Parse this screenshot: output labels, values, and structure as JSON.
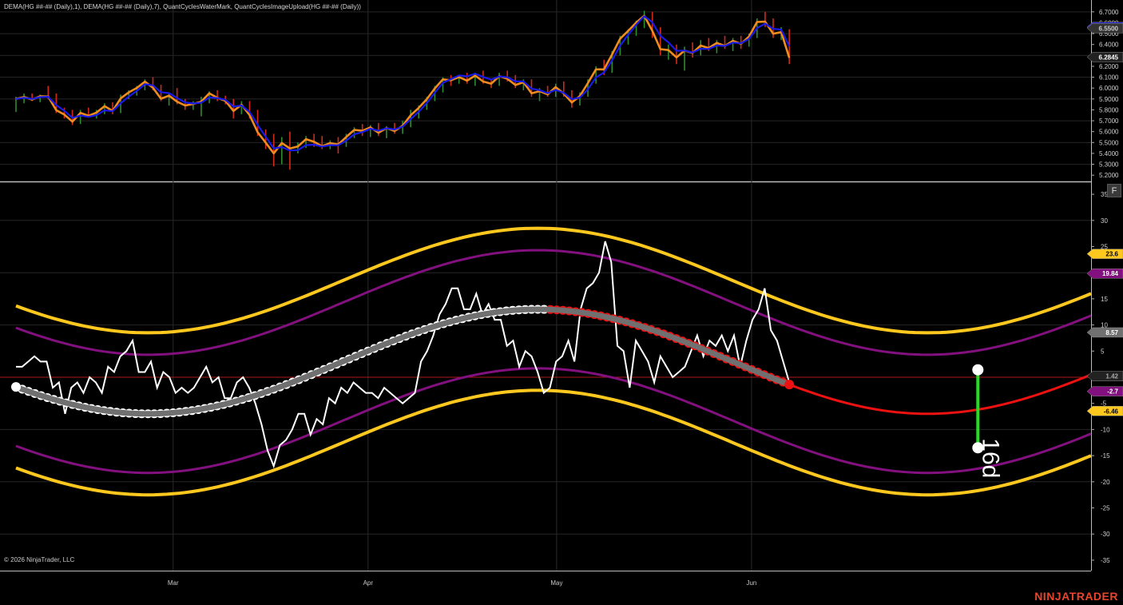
{
  "indicator_label": "DEMA(HG ##-## (Daily),1), DEMA(HG ##-## (Daily),7), QuantCyclesWaterMark, QuantCyclesImageUpload(HG ##-## (Daily))",
  "copyright": "© 2026 NinjaTrader, LLC",
  "brand": "NINJATRADER",
  "f_button": "F",
  "colors": {
    "background": "#000000",
    "bull_bar": "#2e8b2e",
    "bear_bar": "#d22a1a",
    "dema1": "#f08c1e",
    "dema7": "#1a1ae6",
    "outer_band": "#ffc81e",
    "inner_band": "#82107e",
    "cycle_past": "#707070",
    "cycle_future": "#ee1111",
    "oscillator": "#ffffff",
    "zero_line": "#b01a1a",
    "projection": "#22dd22"
  },
  "chart_data": [
    {
      "type": "line",
      "panel": "price",
      "ylim": [
        5.15,
        6.75
      ],
      "y_ticks": [
        "6.7000",
        "6.6000",
        "6.5000",
        "6.4000",
        "6.3000",
        "6.2000",
        "6.1000",
        "6.0000",
        "5.9000",
        "5.8000",
        "5.7000",
        "5.6000",
        "5.5000",
        "5.4000",
        "5.3000",
        "5.2000"
      ],
      "x_labels": [
        {
          "label": "Mar",
          "day": 25
        },
        {
          "label": "Apr",
          "day": 56
        },
        {
          "label": "May",
          "day": 86
        },
        {
          "label": "Jun",
          "day": 117
        }
      ],
      "x_range": [
        0,
        171
      ],
      "bars": [
        [
          5.86,
          5.92,
          5.78,
          5.9
        ],
        [
          5.9,
          5.95,
          5.86,
          5.92
        ],
        [
          5.92,
          5.95,
          5.88,
          5.89
        ],
        [
          5.89,
          5.94,
          5.87,
          5.93
        ],
        [
          5.93,
          6.02,
          5.9,
          5.92
        ],
        [
          5.92,
          5.95,
          5.77,
          5.78
        ],
        [
          5.78,
          5.82,
          5.72,
          5.76
        ],
        [
          5.76,
          5.8,
          5.66,
          5.69
        ],
        [
          5.69,
          5.8,
          5.67,
          5.79
        ],
        [
          5.79,
          5.82,
          5.73,
          5.74
        ],
        [
          5.74,
          5.8,
          5.72,
          5.78
        ],
        [
          5.78,
          5.86,
          5.76,
          5.84
        ],
        [
          5.84,
          5.87,
          5.76,
          5.78
        ],
        [
          5.78,
          5.94,
          5.77,
          5.92
        ],
        [
          5.92,
          5.98,
          5.9,
          5.96
        ],
        [
          5.96,
          6.02,
          5.93,
          6.0
        ],
        [
          6.0,
          6.08,
          5.98,
          6.06
        ],
        [
          6.06,
          6.1,
          5.98,
          5.99
        ],
        [
          5.99,
          6.03,
          5.88,
          5.89
        ],
        [
          5.89,
          5.96,
          5.84,
          5.94
        ],
        [
          5.94,
          6.0,
          5.85,
          5.87
        ],
        [
          5.87,
          5.9,
          5.8,
          5.84
        ],
        [
          5.84,
          5.88,
          5.8,
          5.86
        ],
        [
          5.86,
          5.92,
          5.74,
          5.88
        ],
        [
          5.88,
          5.97,
          5.86,
          5.96
        ],
        [
          5.96,
          5.98,
          5.88,
          5.9
        ],
        [
          5.9,
          5.93,
          5.85,
          5.88
        ],
        [
          5.88,
          5.9,
          5.72,
          5.78
        ],
        [
          5.78,
          5.88,
          5.76,
          5.86
        ],
        [
          5.86,
          5.88,
          5.72,
          5.74
        ],
        [
          5.74,
          5.8,
          5.56,
          5.58
        ],
        [
          5.58,
          5.62,
          5.44,
          5.5
        ],
        [
          5.5,
          5.58,
          5.28,
          5.4
        ],
        [
          5.4,
          5.55,
          5.3,
          5.52
        ],
        [
          5.52,
          5.6,
          5.25,
          5.44
        ],
        [
          5.44,
          5.5,
          5.4,
          5.47
        ],
        [
          5.47,
          5.56,
          5.45,
          5.54
        ],
        [
          5.54,
          5.58,
          5.46,
          5.5
        ],
        [
          5.5,
          5.56,
          5.44,
          5.46
        ],
        [
          5.46,
          5.52,
          5.44,
          5.5
        ],
        [
          5.5,
          5.55,
          5.4,
          5.48
        ],
        [
          5.48,
          5.58,
          5.46,
          5.56
        ],
        [
          5.56,
          5.64,
          5.54,
          5.62
        ],
        [
          5.62,
          5.67,
          5.56,
          5.6
        ],
        [
          5.6,
          5.66,
          5.55,
          5.64
        ],
        [
          5.64,
          5.68,
          5.56,
          5.58
        ],
        [
          5.58,
          5.65,
          5.54,
          5.64
        ],
        [
          5.64,
          5.68,
          5.58,
          5.6
        ],
        [
          5.6,
          5.7,
          5.58,
          5.66
        ],
        [
          5.66,
          5.8,
          5.64,
          5.76
        ],
        [
          5.76,
          5.84,
          5.72,
          5.82
        ],
        [
          5.82,
          5.92,
          5.8,
          5.9
        ],
        [
          5.9,
          6.02,
          5.88,
          6.0
        ],
        [
          6.0,
          6.1,
          5.96,
          6.08
        ],
        [
          6.08,
          6.12,
          6.02,
          6.06
        ],
        [
          6.06,
          6.12,
          6.04,
          6.1
        ],
        [
          6.1,
          6.14,
          6.04,
          6.06
        ],
        [
          6.06,
          6.14,
          6.02,
          6.12
        ],
        [
          6.12,
          6.16,
          6.04,
          6.05
        ],
        [
          6.05,
          6.08,
          6.0,
          6.04
        ],
        [
          6.04,
          6.14,
          6.02,
          6.12
        ],
        [
          6.12,
          6.16,
          6.06,
          6.08
        ],
        [
          6.08,
          6.12,
          6.0,
          6.02
        ],
        [
          6.02,
          6.08,
          5.98,
          6.06
        ],
        [
          6.06,
          6.08,
          5.92,
          5.94
        ],
        [
          5.94,
          6.0,
          5.88,
          5.98
        ],
        [
          5.98,
          6.02,
          5.92,
          5.94
        ],
        [
          5.94,
          6.04,
          5.92,
          6.02
        ],
        [
          6.02,
          6.06,
          5.92,
          5.94
        ],
        [
          5.94,
          5.98,
          5.82,
          5.86
        ],
        [
          5.86,
          5.96,
          5.84,
          5.94
        ],
        [
          5.94,
          6.08,
          5.92,
          6.06
        ],
        [
          6.06,
          6.2,
          6.04,
          6.18
        ],
        [
          6.18,
          6.26,
          6.12,
          6.16
        ],
        [
          6.16,
          6.34,
          6.14,
          6.32
        ],
        [
          6.32,
          6.48,
          6.3,
          6.46
        ],
        [
          6.46,
          6.54,
          6.4,
          6.52
        ],
        [
          6.52,
          6.62,
          6.48,
          6.6
        ],
        [
          6.6,
          6.71,
          6.55,
          6.66
        ],
        [
          6.66,
          6.7,
          6.46,
          6.5
        ],
        [
          6.5,
          6.56,
          6.3,
          6.34
        ],
        [
          6.34,
          6.4,
          6.26,
          6.36
        ],
        [
          6.36,
          6.4,
          6.22,
          6.28
        ],
        [
          6.28,
          6.38,
          6.16,
          6.36
        ],
        [
          6.36,
          6.42,
          6.28,
          6.32
        ],
        [
          6.32,
          6.44,
          6.3,
          6.4
        ],
        [
          6.4,
          6.46,
          6.34,
          6.36
        ],
        [
          6.36,
          6.44,
          6.32,
          6.42
        ],
        [
          6.42,
          6.48,
          6.36,
          6.38
        ],
        [
          6.38,
          6.46,
          6.34,
          6.44
        ],
        [
          6.44,
          6.48,
          6.36,
          6.4
        ],
        [
          6.4,
          6.5,
          6.38,
          6.48
        ],
        [
          6.48,
          6.64,
          6.46,
          6.62
        ],
        [
          6.62,
          6.7,
          6.56,
          6.6
        ],
        [
          6.6,
          6.64,
          6.46,
          6.48
        ],
        [
          6.48,
          6.56,
          6.44,
          6.52
        ],
        [
          6.52,
          6.54,
          6.22,
          6.25
        ]
      ],
      "bars_start_day": 0,
      "bars_end_day": 123,
      "price_tags": [
        {
          "value": "6.5606",
          "y": 6.5606,
          "color": "#1a1ae6",
          "text_color": "#ffffff"
        },
        {
          "value": "6.5500",
          "y": 6.55,
          "color": "#333333",
          "text_color": "#cccccc"
        },
        {
          "value": "6.2845",
          "y": 6.2845,
          "color": "#222222",
          "text_color": "#ffffff"
        }
      ]
    },
    {
      "type": "line",
      "panel": "cycle",
      "ylim": [
        -37,
        37
      ],
      "y_ticks": [
        "35",
        "30",
        "25",
        "20",
        "15",
        "10",
        "5",
        "0",
        "-5",
        "-10",
        "-15",
        "-20",
        "-25",
        "-30",
        "-35"
      ],
      "value_tags": [
        {
          "value": "23.6",
          "y": 23.6,
          "color": "#ffc81e",
          "text_color": "#000000"
        },
        {
          "value": "19.84",
          "y": 19.84,
          "color": "#82107e",
          "text_color": "#ffffff"
        },
        {
          "value": "8.57",
          "y": 8.57,
          "color": "#707070",
          "text_color": "#ffffff"
        },
        {
          "value": "1.42",
          "y": 0.2,
          "color": "#222222",
          "text_color": "#aaaaaa"
        },
        {
          "value": "-2.7",
          "y": -2.7,
          "color": "#82107e",
          "text_color": "#ffffff"
        },
        {
          "value": "-6.46",
          "y": -6.46,
          "color": "#ffc81e",
          "text_color": "#000000"
        }
      ],
      "oscillator_values": [
        2,
        2,
        3,
        4,
        3,
        3,
        -2,
        -1,
        -7,
        -2,
        -1,
        -3,
        0,
        -1,
        -3,
        2,
        1,
        4,
        5,
        7,
        1,
        1,
        3,
        -2,
        1,
        0,
        -3,
        -2,
        -3,
        -2,
        0,
        2,
        -1,
        0,
        -4,
        -4,
        -1,
        0,
        -2,
        -5,
        -9,
        -14,
        -17,
        -13,
        -12,
        -10,
        -7,
        -7,
        -11,
        -8,
        -9,
        -4,
        -5,
        -2,
        -3,
        -1,
        -2,
        -3,
        -3,
        -4,
        -2,
        -3,
        -4,
        -5,
        -4,
        -3,
        3,
        5,
        8,
        12,
        14,
        17,
        17,
        13,
        13,
        16,
        12,
        14,
        11,
        11,
        6,
        7,
        2,
        5,
        4,
        1,
        -3,
        -2,
        3,
        4,
        7,
        3,
        13,
        17,
        18,
        20,
        26,
        22,
        6,
        5,
        -2,
        7,
        5,
        3,
        -1,
        4,
        2,
        0,
        1,
        2,
        5,
        8,
        4,
        7,
        6,
        8,
        5,
        8,
        2,
        7,
        11,
        13,
        17,
        9,
        7,
        3,
        -1
      ],
      "oscillator_start_day": 0,
      "cycle_past_end_day": 85,
      "cycle_red_overlay_start_day": 85,
      "cycle_end_day": 123,
      "projection": {
        "day": 153,
        "top": 1.42,
        "bottom": -13.5,
        "label": "16d"
      }
    }
  ]
}
